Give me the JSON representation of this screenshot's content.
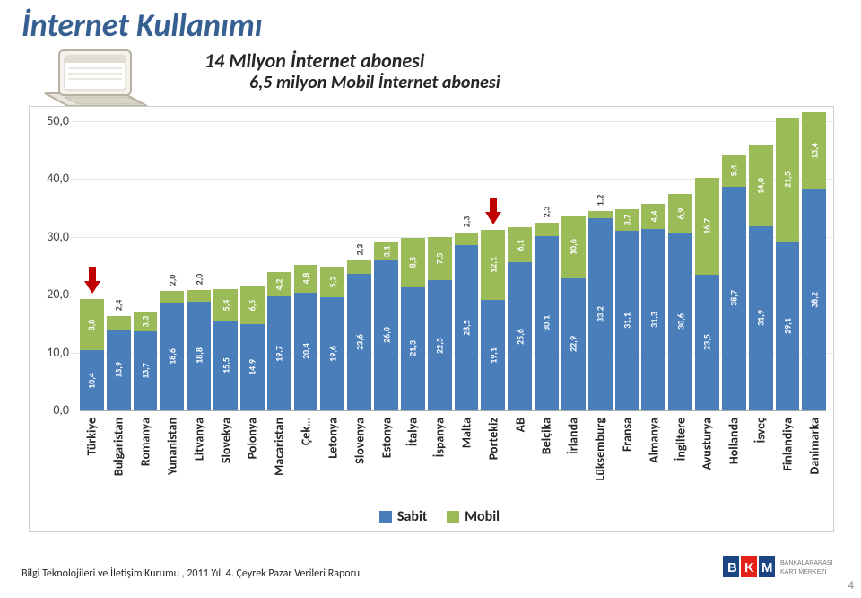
{
  "title": "İnternet Kullanımı",
  "subtitle1": "14 Milyon İnternet abonesi",
  "subtitle2": "6,5 milyon Mobil İnternet abonesi",
  "footer": "Bilgi Teknolojileri ve İletişim Kurumu , 2011 Yılı 4. Çeyrek Pazar Verileri Raporu.",
  "pagenum": "4",
  "legend": {
    "sabit": "Sabit",
    "mobil": "Mobil"
  },
  "chart": {
    "type": "stacked-bar",
    "background_color": "#ffffff",
    "grid_color": "#e8e8e8",
    "sabit_color": "#4a7ebb",
    "mobil_color": "#9bbb59",
    "value_label_color": "#ffffff",
    "value_label_fontsize": 10,
    "axis_fontsize": 14,
    "cat_fontsize": 14,
    "ylim": [
      0,
      50
    ],
    "yticks": [
      0.0,
      10.0,
      20.0,
      30.0,
      40.0,
      50.0
    ],
    "ytick_labels": [
      "0,0",
      "10,0",
      "20,0",
      "30,0",
      "40,0",
      "50,0"
    ],
    "arrow_color": "#c00000",
    "arrow_indices": [
      0,
      15
    ],
    "categories": [
      "Türkiye",
      "Bulgaristan",
      "Romanya",
      "Yunanistan",
      "Litvanya",
      "Slovekya",
      "Polonya",
      "Macaristan",
      "Çek…",
      "Letonya",
      "Slovenya",
      "Estonya",
      "İtalya",
      "İspanya",
      "Malta",
      "Portekiz",
      "AB",
      "Belçika",
      "İrlanda",
      "Lüksemburg",
      "Fransa",
      "Almanya",
      "İngiltere",
      "Avusturya",
      "Hollanda",
      "İsveç",
      "Finlandiya",
      "Danimarka"
    ],
    "sabit": [
      10.4,
      13.9,
      13.7,
      18.6,
      18.8,
      15.5,
      14.9,
      19.7,
      20.4,
      19.6,
      23.6,
      26.0,
      21.3,
      22.5,
      28.5,
      19.1,
      25.6,
      30.1,
      22.9,
      33.2,
      31.1,
      31.3,
      30.6,
      23.5,
      38.7,
      31.9,
      29.1,
      38.2
    ],
    "mobil": [
      8.8,
      2.4,
      3.3,
      2.0,
      2.0,
      5.4,
      6.5,
      4.2,
      4.8,
      5.2,
      2.3,
      3.1,
      8.5,
      7.5,
      2.3,
      12.1,
      6.1,
      2.3,
      10.6,
      1.2,
      3.7,
      4.4,
      6.9,
      16.7,
      5.4,
      14.0,
      21.5,
      13.4
    ],
    "sabit_labels": [
      "10,4",
      "13,9",
      "13,7",
      "18,6",
      "18,8",
      "15,5",
      "14,9",
      "19,7",
      "20,4",
      "19,6",
      "23,6",
      "26,0",
      "21,3",
      "22,5",
      "28,5",
      "19,1",
      "25,6",
      "30,1",
      "22,9",
      "33,2",
      "31,1",
      "31,3",
      "30,6",
      "23,5",
      "38,7",
      "31,9",
      "29,1",
      "38,2"
    ],
    "mobil_labels": [
      "8,8",
      "2,4",
      "3,3",
      "2,0",
      "2,0",
      "5,4",
      "6,5",
      "4,2",
      "4,8",
      "5,2",
      "2,3",
      "3,1",
      "8,5",
      "7,5",
      "2,3",
      "12,1",
      "6,1",
      "2,3",
      "10,6",
      "1,2",
      "3,7",
      "4,4",
      "6,9",
      "16,7",
      "5,4",
      "14,0",
      "21,5",
      "13,4"
    ]
  }
}
